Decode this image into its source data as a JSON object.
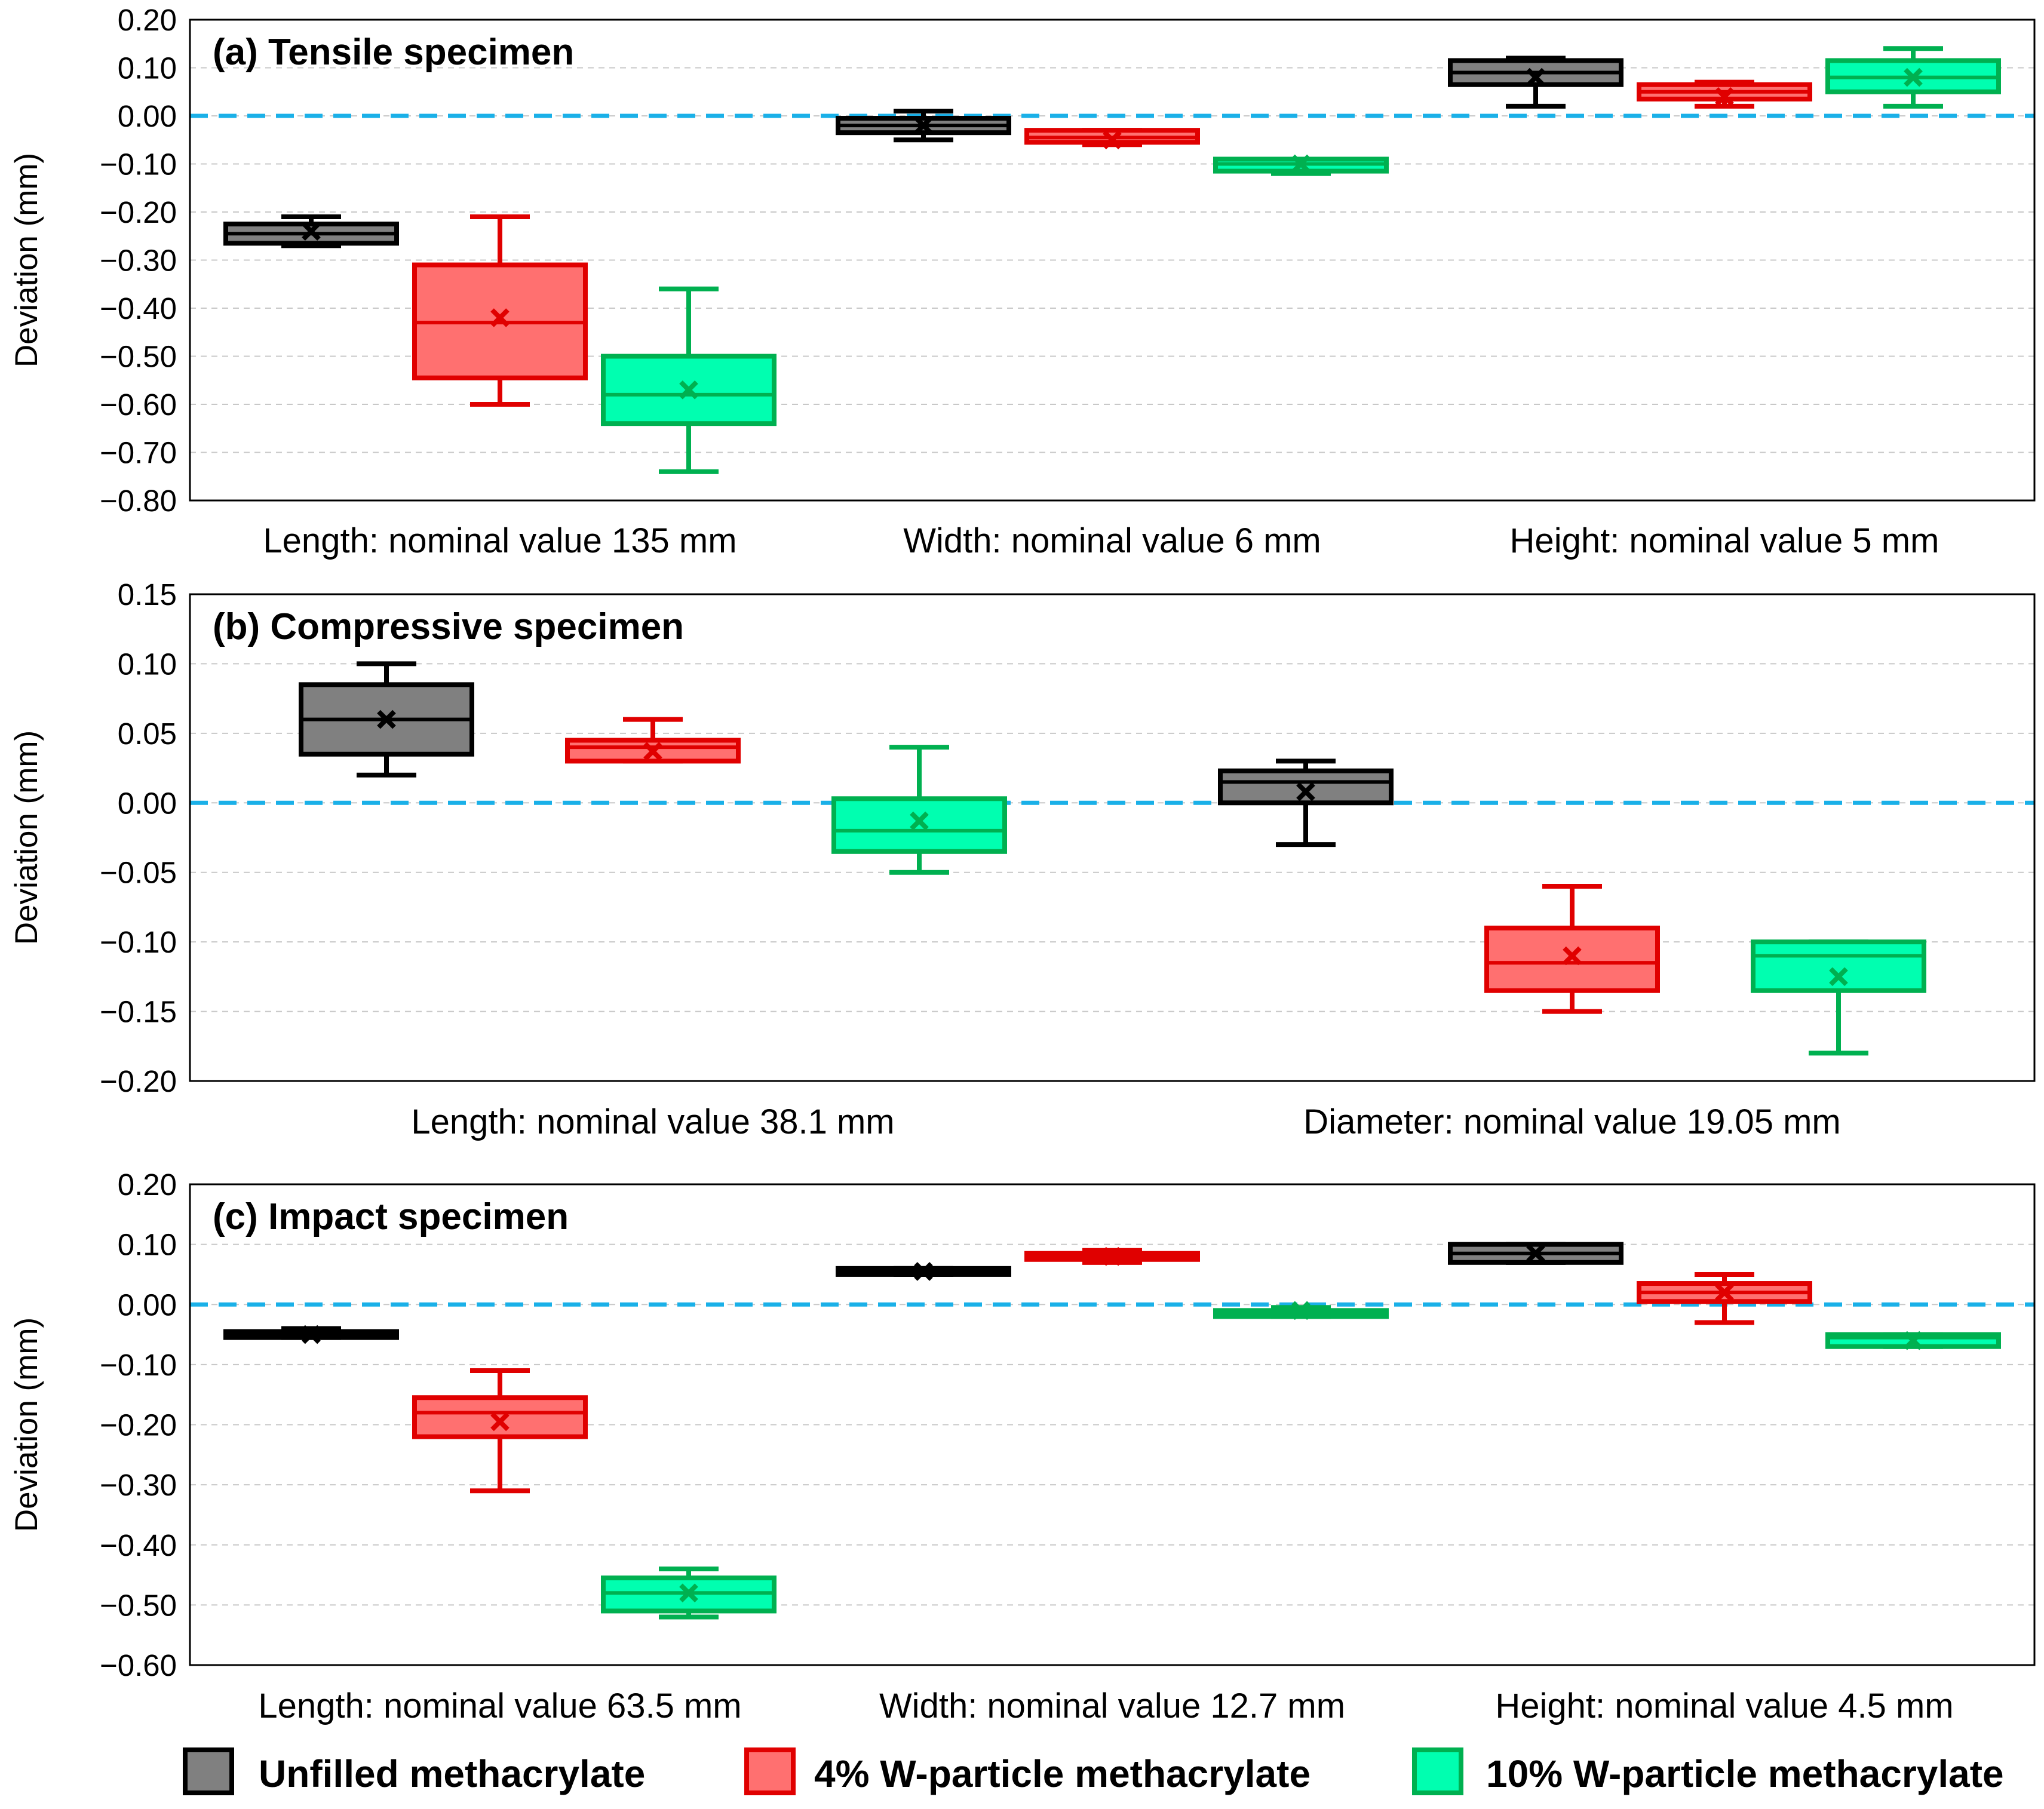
{
  "series": [
    {
      "name": "Unfilled methacrylate",
      "stroke": "#000000",
      "fill": "#808080"
    },
    {
      "name": "4% W-particle methacrylate",
      "stroke": "#e00000",
      "fill": "#ff7070"
    },
    {
      "name": "10% W-particle methacrylate",
      "stroke": "#00b050",
      "fill": "#00ffb0"
    }
  ],
  "reference_line_color": "#1ab0e8",
  "chart_data": [
    {
      "type": "box",
      "title": "(a) Tensile specimen",
      "ylabel": "Deviation (mm)",
      "ylim": [
        -0.8,
        0.2
      ],
      "yticks": [
        0.2,
        0.1,
        0.0,
        -0.1,
        -0.2,
        -0.3,
        -0.4,
        -0.5,
        -0.6,
        -0.7,
        -0.8
      ],
      "ytick_labels": [
        "0.20",
        "0.10",
        "0.00",
        "−0.10",
        "−0.20",
        "−0.30",
        "−0.40",
        "−0.50",
        "−0.60",
        "−0.70",
        "−0.80"
      ],
      "reference": 0.0,
      "categories": [
        "Length: nominal value 135 mm",
        "Width: nominal value 6 mm",
        "Height: nominal value 5 mm"
      ],
      "boxes": [
        [
          {
            "min": -0.27,
            "q1": -0.265,
            "median": -0.245,
            "q3": -0.225,
            "max": -0.21,
            "mean": -0.24
          },
          {
            "min": -0.6,
            "q1": -0.545,
            "median": -0.43,
            "q3": -0.31,
            "max": -0.21,
            "mean": -0.42
          },
          {
            "min": -0.74,
            "q1": -0.64,
            "median": -0.58,
            "q3": -0.5,
            "max": -0.36,
            "mean": -0.57
          }
        ],
        [
          {
            "min": -0.05,
            "q1": -0.035,
            "median": -0.02,
            "q3": -0.005,
            "max": 0.01,
            "mean": -0.02
          },
          {
            "min": -0.06,
            "q1": -0.055,
            "median": -0.045,
            "q3": -0.03,
            "max": -0.03,
            "mean": -0.05
          },
          {
            "min": -0.12,
            "q1": -0.115,
            "median": -0.1,
            "q3": -0.09,
            "max": -0.09,
            "mean": -0.1
          }
        ],
        [
          {
            "min": 0.02,
            "q1": 0.065,
            "median": 0.09,
            "q3": 0.115,
            "max": 0.12,
            "mean": 0.08
          },
          {
            "min": 0.02,
            "q1": 0.035,
            "median": 0.05,
            "q3": 0.065,
            "max": 0.07,
            "mean": 0.04
          },
          {
            "min": 0.02,
            "q1": 0.05,
            "median": 0.08,
            "q3": 0.115,
            "max": 0.14,
            "mean": 0.08
          }
        ]
      ]
    },
    {
      "type": "box",
      "title": "(b) Compressive specimen",
      "ylabel": "Deviation (mm)",
      "ylim": [
        -0.2,
        0.15
      ],
      "yticks": [
        0.15,
        0.1,
        0.05,
        0.0,
        -0.05,
        -0.1,
        -0.15,
        -0.2
      ],
      "ytick_labels": [
        "0.15",
        "0.10",
        "0.05",
        "0.00",
        "−0.05",
        "−0.10",
        "−0.15",
        "−0.20"
      ],
      "reference": 0.0,
      "categories": [
        "Length: nominal value 38.1 mm",
        "Diameter: nominal value 19.05 mm"
      ],
      "boxes": [
        [
          {
            "min": 0.02,
            "q1": 0.035,
            "median": 0.06,
            "q3": 0.085,
            "max": 0.1,
            "mean": 0.06
          },
          {
            "min": 0.03,
            "q1": 0.03,
            "median": 0.04,
            "q3": 0.045,
            "max": 0.06,
            "mean": 0.037
          },
          {
            "min": -0.05,
            "q1": -0.035,
            "median": -0.02,
            "q3": 0.003,
            "max": 0.04,
            "mean": -0.013
          }
        ],
        [
          {
            "min": -0.03,
            "q1": 0.0,
            "median": 0.015,
            "q3": 0.023,
            "max": 0.03,
            "mean": 0.008
          },
          {
            "min": -0.15,
            "q1": -0.135,
            "median": -0.115,
            "q3": -0.09,
            "max": -0.06,
            "mean": -0.11
          },
          {
            "min": -0.18,
            "q1": -0.135,
            "median": -0.11,
            "q3": -0.1,
            "max": -0.1,
            "mean": -0.125
          }
        ]
      ]
    },
    {
      "type": "box",
      "title": "(c) Impact specimen",
      "ylabel": "Deviation (mm)",
      "ylim": [
        -0.6,
        0.2
      ],
      "yticks": [
        0.2,
        0.1,
        0.0,
        -0.1,
        -0.2,
        -0.3,
        -0.4,
        -0.5,
        -0.6
      ],
      "ytick_labels": [
        "0.20",
        "0.10",
        "0.00",
        "−0.10",
        "−0.20",
        "−0.30",
        "−0.40",
        "−0.50",
        "−0.60"
      ],
      "reference": 0.0,
      "categories": [
        "Length: nominal value 63.5 mm",
        "Width: nominal value 12.7 mm",
        "Height: nominal value 4.5 mm"
      ],
      "boxes": [
        [
          {
            "min": -0.055,
            "q1": -0.055,
            "median": -0.05,
            "q3": -0.045,
            "max": -0.04,
            "mean": -0.05
          },
          {
            "min": -0.31,
            "q1": -0.22,
            "median": -0.18,
            "q3": -0.155,
            "max": -0.11,
            "mean": -0.195
          },
          {
            "min": -0.52,
            "q1": -0.51,
            "median": -0.48,
            "q3": -0.455,
            "max": -0.44,
            "mean": -0.48
          }
        ],
        [
          {
            "min": 0.05,
            "q1": 0.05,
            "median": 0.055,
            "q3": 0.06,
            "max": 0.06,
            "mean": 0.055
          },
          {
            "min": 0.07,
            "q1": 0.075,
            "median": 0.08,
            "q3": 0.085,
            "max": 0.09,
            "mean": 0.08
          },
          {
            "min": -0.02,
            "q1": -0.02,
            "median": -0.015,
            "q3": -0.01,
            "max": -0.005,
            "mean": -0.01
          }
        ],
        [
          {
            "min": 0.07,
            "q1": 0.07,
            "median": 0.085,
            "q3": 0.1,
            "max": 0.1,
            "mean": 0.085
          },
          {
            "min": -0.03,
            "q1": 0.005,
            "median": 0.02,
            "q3": 0.035,
            "max": 0.05,
            "mean": 0.02
          },
          {
            "min": -0.07,
            "q1": -0.07,
            "median": -0.055,
            "q3": -0.05,
            "max": -0.05,
            "mean": -0.06
          }
        ]
      ]
    }
  ]
}
